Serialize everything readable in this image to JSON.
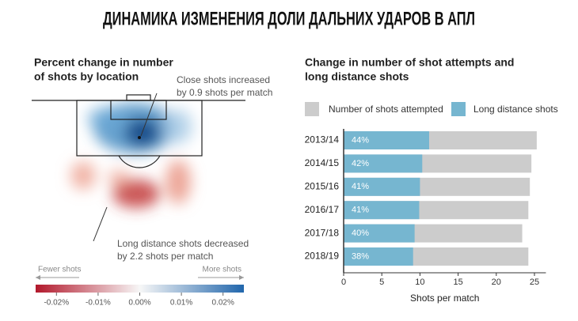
{
  "title": "ДИНАМИКА ИЗМЕНЕНИЯ ДОЛИ ДАЛЬНИХ УДАРОВ В АПЛ",
  "chart_data": [
    {
      "type": "heatmap",
      "title": [
        "Percent change in number",
        "of shots by location"
      ],
      "annotations": [
        [
          "Close shots increased",
          "by 0.9 shots per match"
        ],
        [
          "Long distance shots decreased",
          "by 2.2 shots per match"
        ]
      ],
      "scale_ends": [
        "Fewer shots",
        "More shots"
      ],
      "colorbar_lim": [
        -0.025,
        0.025
      ],
      "colorbar_ticks": [
        {
          "value": -0.02,
          "label": "-0.02%"
        },
        {
          "value": -0.01,
          "label": "-0.01%"
        },
        {
          "value": 0,
          "label": "0.00%"
        },
        {
          "value": 0.01,
          "label": "0.01%"
        },
        {
          "value": 0.02,
          "label": "0.02%"
        }
      ],
      "colors": [
        "#b2182b",
        "#f7f7f7",
        "#2166ac"
      ]
    },
    {
      "type": "bar",
      "title": [
        "Change in number of shot attempts and",
        "long distance shots"
      ],
      "categories": [
        "2013/14",
        "2014/15",
        "2015/16",
        "2016/17",
        "2017/18",
        "2018/19"
      ],
      "series": [
        {
          "name": "Number of shots attempted",
          "color": "#cccccc",
          "values": [
            25.3,
            24.6,
            24.4,
            24.2,
            23.4,
            24.2
          ]
        },
        {
          "name": "Long distance shots",
          "color": "#76b6d0",
          "values": [
            11.2,
            10.3,
            10.0,
            9.9,
            9.3,
            9.1
          ],
          "value_labels": [
            "44%",
            "42%",
            "41%",
            "41%",
            "40%",
            "38%"
          ]
        }
      ],
      "xlabel": "Shots per match",
      "xlim": [
        0,
        26.5
      ],
      "xticks": [
        0,
        5,
        10,
        15,
        20,
        25
      ]
    }
  ]
}
